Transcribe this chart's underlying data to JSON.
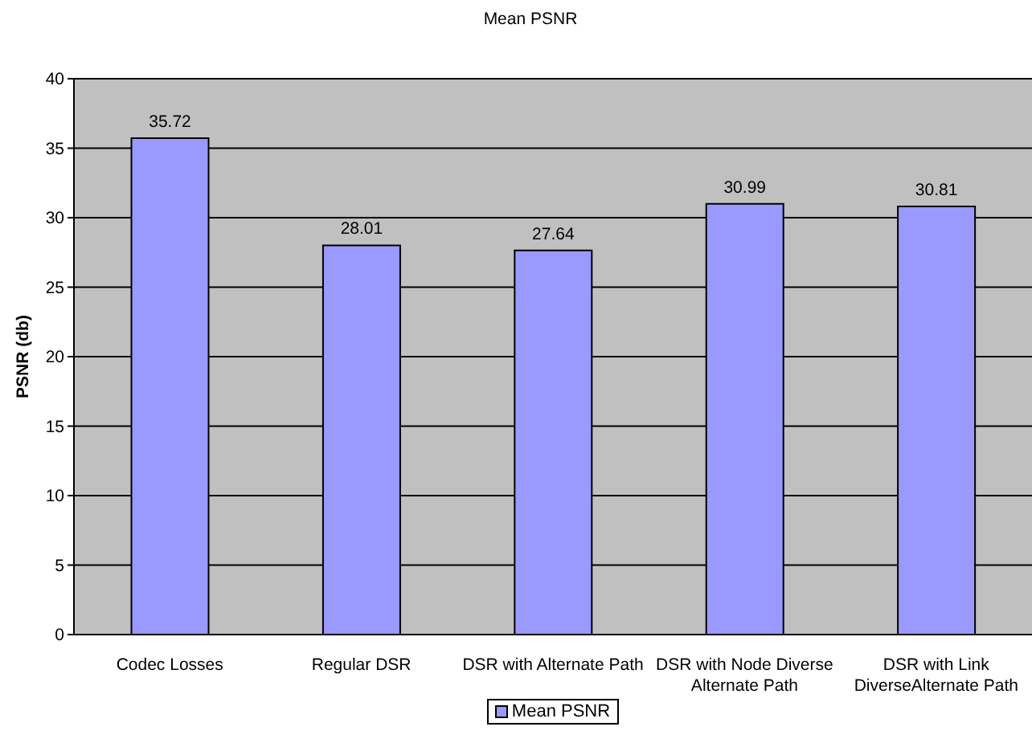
{
  "chart_data": {
    "type": "bar",
    "title": "Mean PSNR",
    "ylabel": "PSNR (db)",
    "categories": [
      "Codec Losses",
      "Regular DSR",
      "DSR with Alternate Path",
      "DSR with Node Diverse Alternate Path",
      "DSR with Link DiverseAlternate Path"
    ],
    "series": [
      {
        "name": "Mean PSNR",
        "color": "#9999ff",
        "values": [
          35.72,
          28.01,
          27.64,
          30.99,
          30.81
        ]
      }
    ],
    "ylim": [
      0,
      40
    ],
    "yticks": [
      0,
      5,
      10,
      15,
      20,
      25,
      30,
      35,
      40
    ],
    "grid": "y",
    "legend": "bottom",
    "data_labels": true
  }
}
